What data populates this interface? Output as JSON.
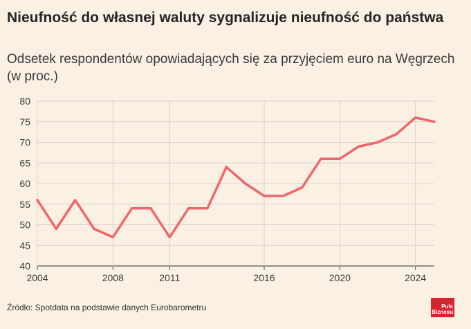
{
  "chart_data": {
    "type": "line",
    "title": "Nieufność do własnej waluty sygnalizuje nieufność do państwa",
    "subtitle": "Odsetek respondentów opowiadających się za przyjęciem euro na Węgrzech (w proc.)",
    "xlabel": "",
    "ylabel": "",
    "x_ticks": [
      2004,
      2008,
      2011,
      2016,
      2020,
      2024
    ],
    "y_ticks": [
      40,
      45,
      50,
      55,
      60,
      65,
      70,
      75,
      80
    ],
    "xlim": [
      2004,
      2025
    ],
    "ylim": [
      40,
      80
    ],
    "grid": true,
    "line_color": "#f0676a",
    "series": [
      {
        "x": [
          2004,
          2005,
          2006,
          2007,
          2008,
          2009,
          2010,
          2011,
          2012,
          2013,
          2014,
          2015,
          2016,
          2017,
          2018,
          2019,
          2020,
          2021,
          2022,
          2023,
          2024,
          2025
        ],
        "values": [
          56,
          49,
          56,
          49,
          47,
          54,
          54,
          47,
          54,
          54,
          64,
          60,
          57,
          57,
          59,
          66,
          66,
          69,
          70,
          72,
          76,
          75
        ]
      }
    ]
  },
  "source": "Źródło: Spotdata na podstawie danych Eurobarometru",
  "logo": {
    "line1": "Puls",
    "line2": "Biznesu",
    "color": "#d9232e"
  }
}
